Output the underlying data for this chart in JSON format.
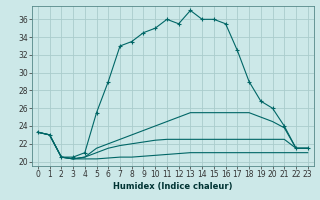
{
  "xlabel": "Humidex (Indice chaleur)",
  "background_color": "#cce8e8",
  "grid_color": "#aacccc",
  "line_color": "#006666",
  "xlim": [
    -0.5,
    23.5
  ],
  "ylim": [
    19.5,
    37.5
  ],
  "xticks": [
    0,
    1,
    2,
    3,
    4,
    5,
    6,
    7,
    8,
    9,
    10,
    11,
    12,
    13,
    14,
    15,
    16,
    17,
    18,
    19,
    20,
    21,
    22,
    23
  ],
  "yticks": [
    20,
    22,
    24,
    26,
    28,
    30,
    32,
    34,
    36
  ],
  "series": [
    [
      23.3,
      23.0,
      20.5,
      20.5,
      21.0,
      25.5,
      29.0,
      33.0,
      33.5,
      34.5,
      35.0,
      36.0,
      35.5,
      37.0,
      36.0,
      36.0,
      35.5,
      32.5,
      29.0,
      26.8,
      26.0,
      24.0,
      21.5,
      21.5
    ],
    [
      23.3,
      23.0,
      20.5,
      20.3,
      20.3,
      20.3,
      20.4,
      20.5,
      20.5,
      20.6,
      20.7,
      20.8,
      20.9,
      21.0,
      21.0,
      21.0,
      21.0,
      21.0,
      21.0,
      21.0,
      21.0,
      21.0,
      21.0,
      21.0
    ],
    [
      23.3,
      23.0,
      20.5,
      20.3,
      20.5,
      21.0,
      21.5,
      21.8,
      22.0,
      22.2,
      22.4,
      22.5,
      22.5,
      22.5,
      22.5,
      22.5,
      22.5,
      22.5,
      22.5,
      22.5,
      22.5,
      22.5,
      21.5,
      21.5
    ],
    [
      23.3,
      23.0,
      20.5,
      20.3,
      20.5,
      21.5,
      22.0,
      22.5,
      23.0,
      23.5,
      24.0,
      24.5,
      25.0,
      25.5,
      25.5,
      25.5,
      25.5,
      25.5,
      25.5,
      25.0,
      24.5,
      23.8,
      21.5,
      21.5
    ]
  ],
  "markers_series": 0,
  "marker_style": "+",
  "tick_fontsize": 5.5,
  "xlabel_fontsize": 6.0
}
